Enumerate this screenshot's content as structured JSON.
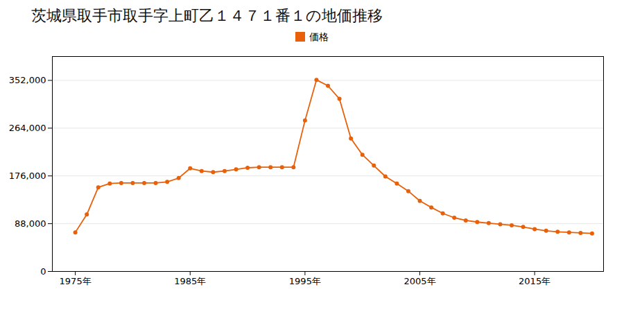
{
  "chart_data": {
    "type": "line",
    "title": "茨城県取手市取手字上町乙１４７１番１の地価推移",
    "x": [
      1975,
      1976,
      1977,
      1978,
      1979,
      1980,
      1981,
      1982,
      1983,
      1984,
      1985,
      1986,
      1987,
      1988,
      1989,
      1990,
      1991,
      1992,
      1993,
      1994,
      1995,
      1996,
      1997,
      1998,
      1999,
      2000,
      2001,
      2002,
      2003,
      2004,
      2005,
      2006,
      2007,
      2008,
      2009,
      2010,
      2011,
      2012,
      2013,
      2014,
      2015,
      2016,
      2017,
      2018,
      2019,
      2020
    ],
    "series": [
      {
        "name": "価格",
        "color": "#e8600a",
        "values": [
          72000,
          105000,
          155000,
          162000,
          163000,
          163000,
          163000,
          163000,
          165000,
          172000,
          190000,
          185000,
          183000,
          185000,
          188000,
          191000,
          192000,
          192000,
          192000,
          192000,
          278000,
          353000,
          342000,
          318000,
          245000,
          215000,
          195000,
          175000,
          162000,
          148000,
          130000,
          118000,
          107000,
          99000,
          94000,
          91000,
          89000,
          87000,
          85000,
          82000,
          78000,
          75000,
          73000,
          72000,
          71000,
          70000
        ]
      }
    ],
    "xlim": [
      1973,
      2021
    ],
    "xticks": [
      {
        "value": 1975,
        "label": "1975年"
      },
      {
        "value": 1985,
        "label": "1985年"
      },
      {
        "value": 1995,
        "label": "1995年"
      },
      {
        "value": 2005,
        "label": "2005年"
      },
      {
        "value": 2015,
        "label": "2015年"
      }
    ],
    "ylim": [
      0,
      396000
    ],
    "yticks": [
      0,
      {
        "value": 88000,
        "label": "88,000"
      },
      {
        "value": 176000,
        "label": "176,000"
      },
      {
        "value": 264000,
        "label": "264,000"
      },
      {
        "value": 352000,
        "label": "352,000"
      }
    ],
    "grid": "y",
    "legend": "top",
    "marker": "circle"
  }
}
